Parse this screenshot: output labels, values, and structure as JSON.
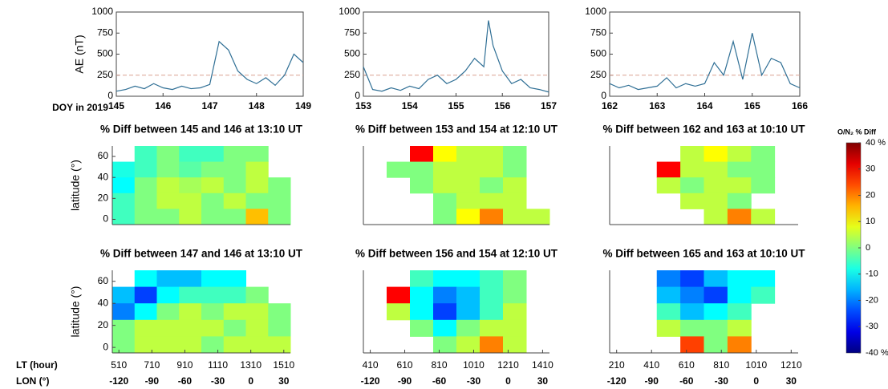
{
  "chart_data": [
    {
      "type": "line",
      "ylabel": "AE (nT)",
      "xlabel": "DOY in 2019",
      "color": "#2f6f95",
      "reference_line": 250,
      "xlim": [
        145,
        149
      ],
      "xticks": [
        145,
        146,
        147,
        148,
        149
      ],
      "ylim": [
        0,
        1000
      ],
      "yticks": [
        0,
        250,
        500,
        750,
        1000
      ],
      "x": [
        145,
        145.2,
        145.4,
        145.6,
        145.8,
        146,
        146.2,
        146.4,
        146.6,
        146.8,
        147,
        147.2,
        147.4,
        147.6,
        147.8,
        148,
        148.2,
        148.4,
        148.6,
        148.8,
        149
      ],
      "values": [
        60,
        80,
        120,
        90,
        150,
        100,
        80,
        120,
        90,
        100,
        140,
        650,
        550,
        300,
        200,
        150,
        220,
        130,
        250,
        500,
        400
      ]
    },
    {
      "type": "line",
      "color": "#2f6f95",
      "reference_line": 250,
      "xlim": [
        153,
        157
      ],
      "xticks": [
        153,
        154,
        155,
        156,
        157
      ],
      "ylim": [
        0,
        1000
      ],
      "yticks": [
        0,
        250,
        500,
        750,
        1000
      ],
      "x": [
        153,
        153.2,
        153.4,
        153.6,
        153.8,
        154,
        154.2,
        154.4,
        154.6,
        154.8,
        155,
        155.2,
        155.4,
        155.6,
        155.7,
        155.8,
        156,
        156.2,
        156.4,
        156.6,
        156.8,
        157
      ],
      "values": [
        350,
        80,
        60,
        100,
        70,
        120,
        90,
        200,
        250,
        150,
        200,
        300,
        450,
        350,
        900,
        600,
        300,
        150,
        200,
        100,
        80,
        50
      ]
    },
    {
      "type": "line",
      "color": "#2f6f95",
      "reference_line": 250,
      "xlim": [
        162,
        166
      ],
      "xticks": [
        162,
        163,
        164,
        165,
        166
      ],
      "ylim": [
        0,
        1000
      ],
      "yticks": [
        0,
        250,
        500,
        750,
        1000
      ],
      "x": [
        162,
        162.2,
        162.4,
        162.6,
        162.8,
        163,
        163.2,
        163.4,
        163.6,
        163.8,
        164,
        164.2,
        164.4,
        164.6,
        164.8,
        165,
        165.2,
        165.4,
        165.6,
        165.8,
        166
      ],
      "values": [
        150,
        100,
        130,
        80,
        100,
        120,
        220,
        100,
        150,
        120,
        150,
        400,
        250,
        650,
        200,
        750,
        250,
        450,
        400,
        150,
        100
      ]
    },
    {
      "type": "heatmap",
      "title": "% Diff between 145 and 146 at 13:10 UT",
      "ylabel": "latitude (°)",
      "ylim": [
        -5,
        70
      ],
      "yticks": [
        0,
        20,
        40,
        60
      ],
      "xlim": [
        470,
        1550
      ],
      "z": [
        [
          null,
          -5,
          0,
          -5,
          -5,
          0,
          0,
          null
        ],
        [
          -8,
          -5,
          0,
          -3,
          0,
          0,
          5,
          null
        ],
        [
          -10,
          0,
          5,
          3,
          5,
          0,
          5,
          0
        ],
        [
          -5,
          0,
          5,
          5,
          0,
          5,
          0,
          0
        ],
        [
          -5,
          0,
          0,
          5,
          0,
          0,
          15,
          0
        ]
      ]
    },
    {
      "type": "heatmap",
      "title": "% Diff between 153 and 154 at 12:10 UT",
      "ylim": [
        -5,
        70
      ],
      "xlim": [
        370,
        1450
      ],
      "z": [
        [
          null,
          null,
          30,
          10,
          5,
          5,
          0,
          null
        ],
        [
          null,
          0,
          0,
          5,
          5,
          5,
          0,
          null
        ],
        [
          null,
          null,
          0,
          5,
          5,
          0,
          5,
          null
        ],
        [
          null,
          null,
          null,
          0,
          5,
          5,
          5,
          null
        ],
        [
          null,
          null,
          null,
          0,
          10,
          20,
          5,
          5
        ]
      ]
    },
    {
      "type": "heatmap",
      "title": "% Diff between 162 and 163 at 10:10 UT",
      "ylim": [
        -5,
        70
      ],
      "xlim": [
        170,
        1250
      ],
      "z": [
        [
          null,
          null,
          null,
          5,
          10,
          5,
          0,
          null
        ],
        [
          null,
          null,
          30,
          5,
          5,
          0,
          0,
          null
        ],
        [
          null,
          null,
          5,
          0,
          5,
          5,
          0,
          null
        ],
        [
          null,
          null,
          null,
          5,
          5,
          0,
          null,
          null
        ],
        [
          null,
          null,
          null,
          null,
          5,
          20,
          5,
          null
        ]
      ]
    },
    {
      "type": "heatmap",
      "title": "% Diff between 147 and 146 at 13:10 UT",
      "ylabel": "latitude (°)",
      "ylim": [
        -5,
        70
      ],
      "yticks": [
        0,
        20,
        40,
        60
      ],
      "xlim": [
        470,
        1550
      ],
      "xlabel": "LT (hour)",
      "x2label": "LON (°)",
      "xticks": [
        510,
        710,
        910,
        1110,
        1310,
        1510
      ],
      "x2ticks": [
        -120,
        -90,
        -60,
        -30,
        0,
        30
      ],
      "z": [
        [
          null,
          -10,
          -15,
          -15,
          -10,
          -10,
          null,
          null
        ],
        [
          -15,
          -25,
          -10,
          -5,
          -5,
          -5,
          0,
          null
        ],
        [
          -20,
          -10,
          0,
          5,
          0,
          5,
          5,
          0
        ],
        [
          0,
          5,
          5,
          5,
          5,
          0,
          5,
          0
        ],
        [
          0,
          5,
          5,
          5,
          0,
          5,
          5,
          5
        ]
      ]
    },
    {
      "type": "heatmap",
      "title": "% Diff between 156 and 154 at 12:10 UT",
      "ylim": [
        -5,
        70
      ],
      "xlim": [
        370,
        1450
      ],
      "xticks": [
        410,
        610,
        810,
        1010,
        1210,
        1410
      ],
      "x2ticks": [
        -120,
        -90,
        -60,
        -30,
        0,
        30
      ],
      "z": [
        [
          null,
          null,
          -5,
          -10,
          -10,
          -5,
          0,
          null
        ],
        [
          null,
          30,
          -10,
          -20,
          -15,
          -5,
          0,
          null
        ],
        [
          null,
          5,
          -10,
          -25,
          -15,
          -5,
          5,
          null
        ],
        [
          null,
          null,
          0,
          -10,
          0,
          5,
          5,
          null
        ],
        [
          null,
          null,
          null,
          0,
          5,
          20,
          5,
          null
        ]
      ]
    },
    {
      "type": "heatmap",
      "title": "% Diff between 165 and 163 at 10:10 UT",
      "ylim": [
        -5,
        70
      ],
      "xlim": [
        170,
        1250
      ],
      "xticks": [
        210,
        410,
        610,
        810,
        1010,
        1210
      ],
      "x2ticks": [
        -120,
        -90,
        -60,
        -30,
        0,
        30
      ],
      "z": [
        [
          null,
          null,
          -20,
          -25,
          -15,
          -10,
          -10,
          null
        ],
        [
          null,
          null,
          -15,
          -20,
          -25,
          -10,
          -5,
          null
        ],
        [
          null,
          null,
          -5,
          -15,
          -10,
          -5,
          null,
          null
        ],
        [
          null,
          null,
          5,
          0,
          0,
          5,
          null,
          null
        ],
        [
          null,
          null,
          null,
          25,
          0,
          20,
          null,
          null
        ]
      ]
    }
  ],
  "colorbar": {
    "title": "O/N₂ % Diff",
    "colormap": "jet",
    "zlim": [
      -40,
      40
    ],
    "ticks": [
      {
        "value": 40,
        "label": "40 %"
      },
      30,
      20,
      10,
      0,
      -10,
      -20,
      -30,
      {
        "value": -40,
        "label": "-40 %"
      }
    ]
  }
}
